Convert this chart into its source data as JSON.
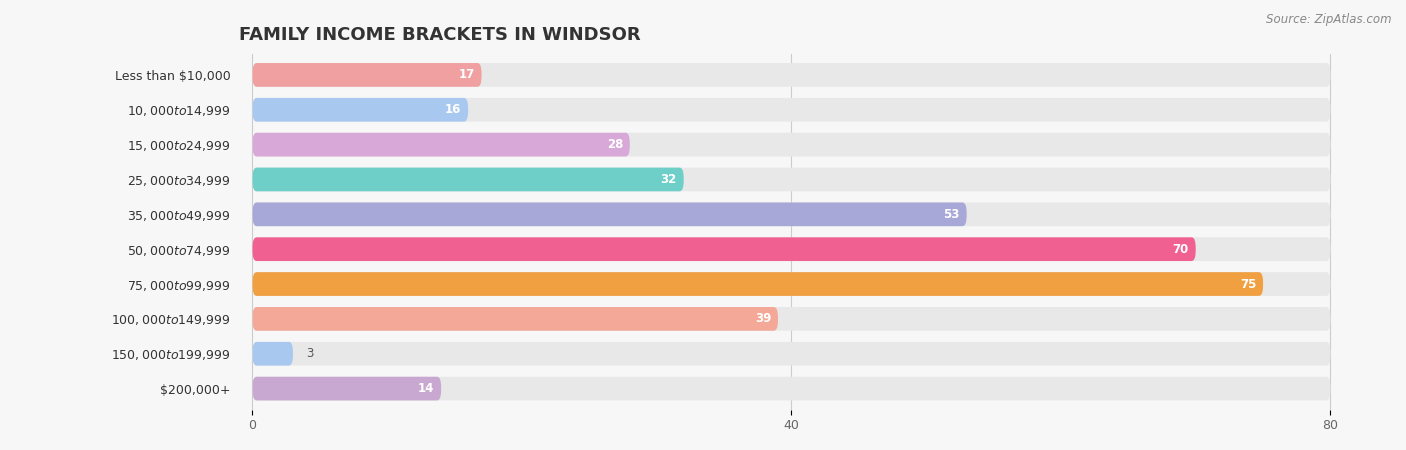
{
  "title": "FAMILY INCOME BRACKETS IN WINDSOR",
  "source": "Source: ZipAtlas.com",
  "categories": [
    "Less than $10,000",
    "$10,000 to $14,999",
    "$15,000 to $24,999",
    "$25,000 to $34,999",
    "$35,000 to $49,999",
    "$50,000 to $74,999",
    "$75,000 to $99,999",
    "$100,000 to $149,999",
    "$150,000 to $199,999",
    "$200,000+"
  ],
  "values": [
    17,
    16,
    28,
    32,
    53,
    70,
    75,
    39,
    3,
    14
  ],
  "bar_colors": [
    "#F0A0A0",
    "#A8C8F0",
    "#D8A8D8",
    "#6ECEC8",
    "#A8A8D8",
    "#F06090",
    "#F0A040",
    "#F4A898",
    "#A8C8F0",
    "#C8A8D0"
  ],
  "xlim_data": [
    0,
    80
  ],
  "xlim_display": [
    -1,
    83
  ],
  "xticks": [
    0,
    40,
    80
  ],
  "background_color": "#f7f7f7",
  "bar_bg_color": "#e8e8e8",
  "title_fontsize": 13,
  "label_fontsize": 9,
  "value_fontsize": 8.5,
  "source_fontsize": 8.5,
  "bar_height": 0.68,
  "value_threshold_inside": 10
}
